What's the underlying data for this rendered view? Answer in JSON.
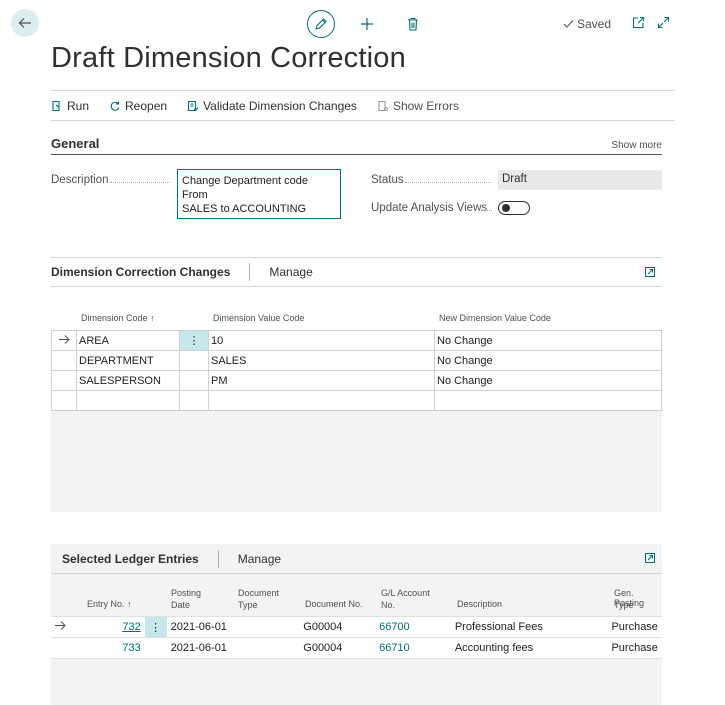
{
  "header": {
    "saved_label": "Saved",
    "title": "Draft Dimension Correction"
  },
  "actions": [
    {
      "label": "Run"
    },
    {
      "label": "Reopen"
    },
    {
      "label": "Validate Dimension Changes"
    },
    {
      "label": "Show Errors"
    }
  ],
  "general": {
    "title": "General",
    "show_more": "Show more",
    "description_label": "Description",
    "description_value_line1": "Change Department code From",
    "description_value_line2": "SALES to ACCOUNTING",
    "status_label": "Status",
    "status_value": "Draft",
    "update_analysis_label": "Update Analysis Views",
    "update_analysis_value": false
  },
  "dimension_changes": {
    "title": "Dimension Correction Changes",
    "manage": "Manage",
    "columns": [
      "Dimension Code ↑",
      "Dimension Value Code",
      "New Dimension Value Code"
    ],
    "rows": [
      {
        "code": "AREA",
        "value": "10",
        "new_value": "No Change"
      },
      {
        "code": "DEPARTMENT",
        "value": "SALES",
        "new_value": "No Change"
      },
      {
        "code": "SALESPERSON",
        "value": "PM",
        "new_value": "No Change"
      }
    ]
  },
  "ledger": {
    "title": "Selected Ledger Entries",
    "manage": "Manage",
    "columns": {
      "entry_no": "Entry No. ↑",
      "posting_date_1": "Posting",
      "posting_date_2": "Date",
      "document_type_1": "Document",
      "document_type_2": "Type",
      "document_no": "Document No.",
      "gl_account_1": "G/L Account",
      "gl_account_2": "No.",
      "description": "Description",
      "gen_posting_1": "Gen. Posting",
      "gen_posting_2": "Type"
    },
    "rows": [
      {
        "entry_no": "732",
        "posting_date": "2021-06-01",
        "document_type": "",
        "document_no": "G00004",
        "gl_account": "66700",
        "description": "Professional Fees",
        "gen_posting": "Purchase"
      },
      {
        "entry_no": "733",
        "posting_date": "2021-06-01",
        "document_type": "",
        "document_no": "G00004",
        "gl_account": "66710",
        "description": "Accounting fees",
        "gen_posting": "Purchase"
      }
    ]
  },
  "colors": {
    "accent": "#00717a",
    "selected_cell": "#c6e8ec"
  }
}
